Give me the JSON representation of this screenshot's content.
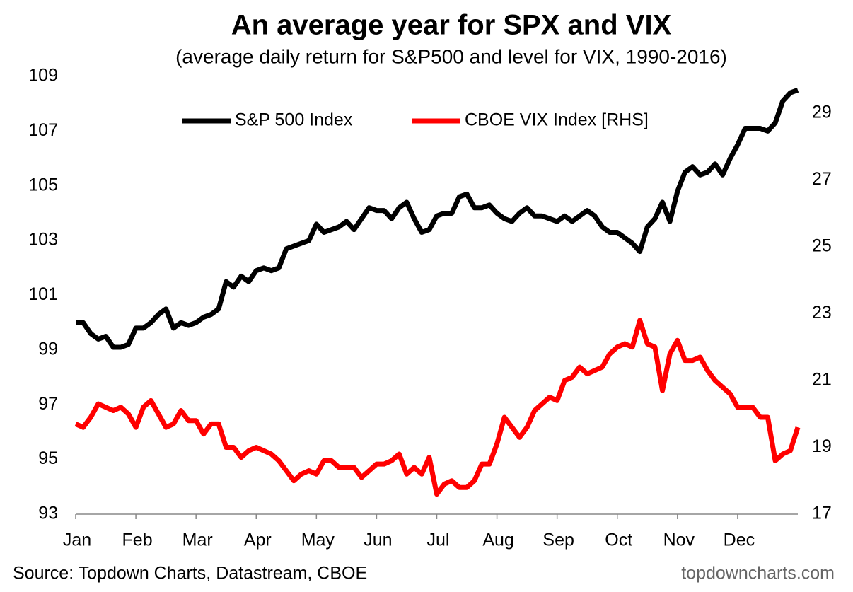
{
  "chart_data": {
    "type": "line",
    "title": "An average year for SPX and VIX",
    "subtitle": "(average daily return for S&P500 and level for VIX, 1990-2016)",
    "source": "Source: Topdown Charts, Datastream, CBOE",
    "watermark": "topdowncharts.com",
    "legend": "top",
    "x": [
      0,
      0.125,
      0.25,
      0.375,
      0.5,
      0.625,
      0.75,
      0.875,
      1,
      1.125,
      1.25,
      1.375,
      1.5,
      1.625,
      1.75,
      1.875,
      2,
      2.125,
      2.25,
      2.375,
      2.5,
      2.625,
      2.75,
      2.875,
      3,
      3.125,
      3.25,
      3.375,
      3.5,
      3.625,
      3.75,
      3.875,
      4,
      4.125,
      4.25,
      4.375,
      4.5,
      4.625,
      4.75,
      4.875,
      5,
      5.125,
      5.25,
      5.375,
      5.5,
      5.625,
      5.75,
      5.875,
      6,
      6.125,
      6.25,
      6.375,
      6.5,
      6.625,
      6.75,
      6.875,
      7,
      7.125,
      7.25,
      7.375,
      7.5,
      7.625,
      7.75,
      7.875,
      8,
      8.125,
      8.25,
      8.375,
      8.5,
      8.625,
      8.75,
      8.875,
      9,
      9.125,
      9.25,
      9.375,
      9.5,
      9.625,
      9.75,
      9.875,
      10,
      10.125,
      10.25,
      10.375,
      10.5,
      10.625,
      10.75,
      10.875,
      11,
      11.125,
      11.25,
      11.375,
      11.5,
      11.625,
      11.75,
      11.875,
      12
    ],
    "xlim": [
      0,
      12
    ],
    "xticks": [
      {
        "value": 0,
        "label": "Jan"
      },
      {
        "value": 1,
        "label": "Feb"
      },
      {
        "value": 2,
        "label": "Mar"
      },
      {
        "value": 3,
        "label": "Apr"
      },
      {
        "value": 4,
        "label": "May"
      },
      {
        "value": 5,
        "label": "Jun"
      },
      {
        "value": 6,
        "label": "Jul"
      },
      {
        "value": 7,
        "label": "Aug"
      },
      {
        "value": 8,
        "label": "Sep"
      },
      {
        "value": 9,
        "label": "Oct"
      },
      {
        "value": 10,
        "label": "Nov"
      },
      {
        "value": 11,
        "label": "Dec"
      }
    ],
    "ylim": [
      93,
      109
    ],
    "yticks": [
      93,
      95,
      97,
      99,
      101,
      103,
      105,
      107,
      109
    ],
    "y2lim": [
      17,
      30.1
    ],
    "y2ticks": [
      17,
      19,
      21,
      23,
      25,
      27,
      29
    ],
    "series": [
      {
        "name": "S&P 500 Index",
        "color": "#000000",
        "values": [
          100.0,
          100.0,
          99.6,
          99.4,
          99.5,
          99.1,
          99.1,
          99.2,
          99.8,
          99.8,
          100.0,
          100.3,
          100.5,
          99.8,
          100.0,
          99.9,
          100.0,
          100.2,
          100.3,
          100.5,
          101.5,
          101.3,
          101.7,
          101.5,
          101.9,
          102.0,
          101.9,
          102.0,
          102.7,
          102.8,
          102.9,
          103.0,
          103.6,
          103.3,
          103.4,
          103.5,
          103.7,
          103.4,
          103.8,
          104.2,
          104.1,
          104.1,
          103.8,
          104.2,
          104.4,
          103.8,
          103.3,
          103.4,
          103.9,
          104.0,
          104.0,
          104.6,
          104.7,
          104.2,
          104.2,
          104.3,
          104.0,
          103.8,
          103.7,
          104.0,
          104.2,
          103.9,
          103.9,
          103.8,
          103.7,
          103.9,
          103.7,
          103.9,
          104.1,
          103.9,
          103.5,
          103.3,
          103.3,
          103.1,
          102.9,
          102.6,
          103.5,
          103.8,
          104.4,
          103.7,
          104.8,
          105.5,
          105.7,
          105.4,
          105.5,
          105.8,
          105.4,
          106.0,
          106.5,
          107.1,
          107.1,
          107.1,
          107.0,
          107.3,
          108.1,
          108.4,
          108.5
        ]
      },
      {
        "name": "CBOE VIX Index [RHS]",
        "color": "#ff0000",
        "axis": "y2",
        "values": [
          19.7,
          19.6,
          19.9,
          20.3,
          20.2,
          20.1,
          20.2,
          20.0,
          19.6,
          20.2,
          20.4,
          20.0,
          19.6,
          19.7,
          20.1,
          19.8,
          19.8,
          19.4,
          19.7,
          19.7,
          19.0,
          19.0,
          18.7,
          18.9,
          19.0,
          18.9,
          18.8,
          18.6,
          18.3,
          18.0,
          18.2,
          18.3,
          18.2,
          18.6,
          18.6,
          18.4,
          18.4,
          18.4,
          18.1,
          18.3,
          18.5,
          18.5,
          18.6,
          18.8,
          18.2,
          18.4,
          18.2,
          18.7,
          17.6,
          17.9,
          18.0,
          17.8,
          17.8,
          18.0,
          18.5,
          18.5,
          19.1,
          19.9,
          19.6,
          19.3,
          19.6,
          20.1,
          20.3,
          20.5,
          20.4,
          21.0,
          21.1,
          21.4,
          21.2,
          21.3,
          21.4,
          21.8,
          22.0,
          22.1,
          22.0,
          22.8,
          22.1,
          22.0,
          20.7,
          21.8,
          22.2,
          21.6,
          21.6,
          21.7,
          21.3,
          21.0,
          20.8,
          20.6,
          20.2,
          20.2,
          20.2,
          19.9,
          19.9,
          18.6,
          18.8,
          18.9,
          19.6
        ]
      }
    ]
  }
}
